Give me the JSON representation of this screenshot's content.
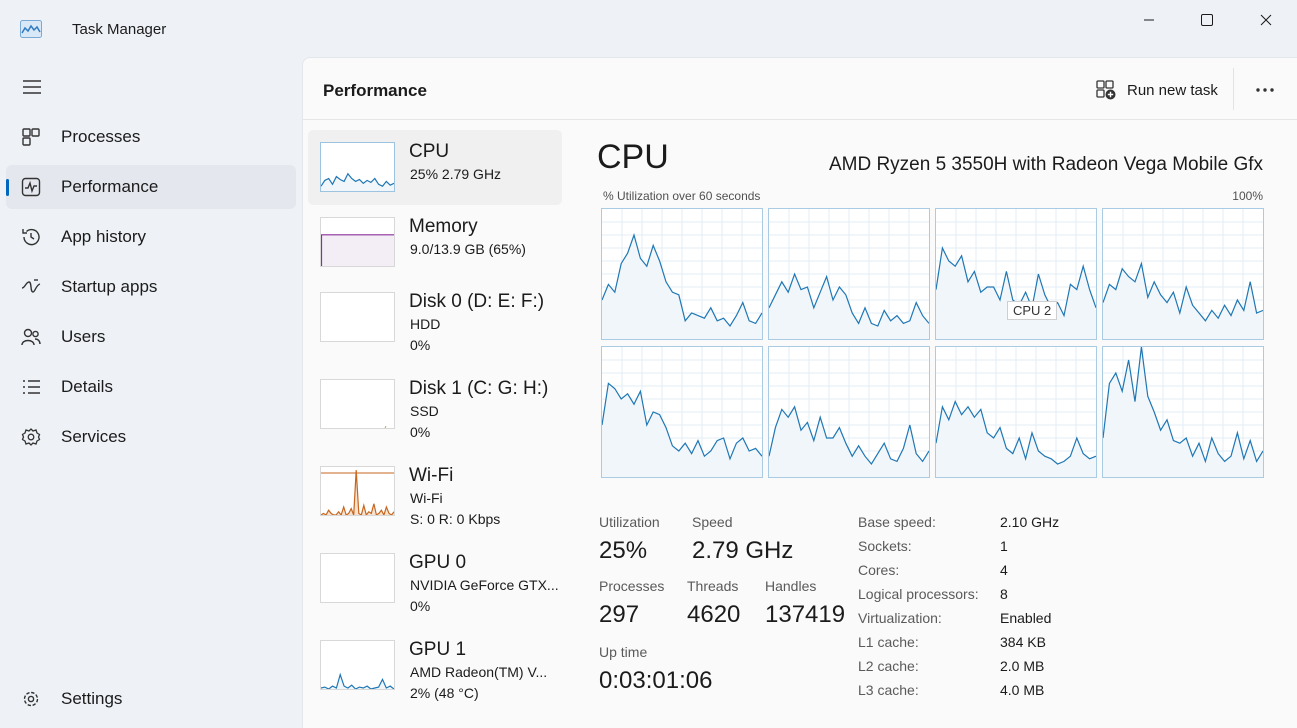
{
  "window": {
    "title": "Task Manager"
  },
  "sidebar": {
    "items": [
      {
        "label": "Processes",
        "icon": "processes-icon"
      },
      {
        "label": "Performance",
        "icon": "performance-icon",
        "active": true
      },
      {
        "label": "App history",
        "icon": "app-history-icon"
      },
      {
        "label": "Startup apps",
        "icon": "startup-apps-icon"
      },
      {
        "label": "Users",
        "icon": "users-icon"
      },
      {
        "label": "Details",
        "icon": "details-icon"
      },
      {
        "label": "Services",
        "icon": "services-icon"
      }
    ],
    "settings_label": "Settings"
  },
  "header": {
    "title": "Performance",
    "run_task_label": "Run new task"
  },
  "resources": [
    {
      "name": "CPU",
      "line1": "25%  2.79 GHz",
      "line2": "",
      "selected": true
    },
    {
      "name": "Memory",
      "line1": "9.0/13.9 GB (65%)",
      "line2": ""
    },
    {
      "name": "Disk 0 (D: E: F:)",
      "line1": "HDD",
      "line2": "0%"
    },
    {
      "name": "Disk 1 (C: G: H:)",
      "line1": "SSD",
      "line2": "0%"
    },
    {
      "name": "Wi-Fi",
      "line1": "Wi-Fi",
      "line2": "S: 0  R: 0 Kbps"
    },
    {
      "name": "GPU 0",
      "line1": "NVIDIA GeForce GTX...",
      "line2": "0%"
    },
    {
      "name": "GPU 1",
      "line1": "AMD Radeon(TM) V...",
      "line2": "2% (48 °C)"
    }
  ],
  "detail": {
    "title": "CPU",
    "model": "AMD Ryzen 5 3550H with Radeon Vega Mobile Gfx",
    "graph_label": "% Utilization over 60 seconds",
    "graph_max": "100%",
    "tooltip": "CPU 2",
    "stats": {
      "utilization_label": "Utilization",
      "utilization": "25%",
      "speed_label": "Speed",
      "speed": "2.79 GHz",
      "processes_label": "Processes",
      "processes": "297",
      "threads_label": "Threads",
      "threads": "4620",
      "handles_label": "Handles",
      "handles": "137419",
      "uptime_label": "Up time",
      "uptime": "0:03:01:06"
    },
    "specs": [
      {
        "key": "Base speed:",
        "value": "2.10 GHz"
      },
      {
        "key": "Sockets:",
        "value": "1"
      },
      {
        "key": "Cores:",
        "value": "4"
      },
      {
        "key": "Logical processors:",
        "value": "8"
      },
      {
        "key": "Virtualization:",
        "value": "Enabled"
      },
      {
        "key": "L1 cache:",
        "value": "384 KB"
      },
      {
        "key": "L2 cache:",
        "value": "2.0 MB"
      },
      {
        "key": "L3 cache:",
        "value": "4.0 MB"
      }
    ]
  },
  "colors": {
    "accent": "#0067c0",
    "cpu_line": "#1f77b4",
    "cpu_fill": "#f1f6fa",
    "memory_line": "#8b2f9c",
    "wifi_line": "#c7661f"
  },
  "chart_data": {
    "type": "area",
    "ylim": [
      0,
      100
    ],
    "series": [
      {
        "name": "CPU 0",
        "values": [
          30,
          42,
          36,
          58,
          66,
          80,
          62,
          56,
          72,
          60,
          44,
          36,
          34,
          14,
          20,
          18,
          16,
          24,
          14,
          16,
          10,
          18,
          28,
          14,
          12,
          20
        ]
      },
      {
        "name": "CPU 1",
        "values": [
          24,
          34,
          44,
          36,
          50,
          38,
          40,
          24,
          36,
          48,
          30,
          40,
          34,
          20,
          12,
          24,
          12,
          10,
          22,
          14,
          18,
          12,
          14,
          28,
          18,
          12
        ]
      },
      {
        "name": "CPU 2",
        "values": [
          38,
          70,
          60,
          56,
          64,
          44,
          52,
          36,
          40,
          40,
          30,
          52,
          30,
          26,
          36,
          24,
          50,
          34,
          24,
          28,
          18,
          42,
          38,
          56,
          38,
          24
        ]
      },
      {
        "name": "CPU 3",
        "values": [
          28,
          42,
          38,
          54,
          48,
          44,
          58,
          32,
          44,
          34,
          28,
          36,
          20,
          40,
          26,
          20,
          14,
          22,
          16,
          26,
          18,
          30,
          22,
          44,
          20,
          22
        ]
      },
      {
        "name": "CPU 4",
        "values": [
          40,
          72,
          68,
          60,
          64,
          56,
          66,
          40,
          50,
          48,
          38,
          24,
          20,
          26,
          18,
          28,
          16,
          20,
          28,
          30,
          14,
          26,
          30,
          20,
          22,
          16
        ]
      },
      {
        "name": "CPU 5",
        "values": [
          16,
          38,
          52,
          46,
          54,
          36,
          42,
          28,
          46,
          30,
          30,
          38,
          26,
          16,
          24,
          16,
          10,
          18,
          26,
          14,
          12,
          22,
          40,
          18,
          12,
          20
        ]
      },
      {
        "name": "CPU 6",
        "values": [
          26,
          54,
          44,
          58,
          48,
          54,
          46,
          52,
          34,
          30,
          38,
          22,
          18,
          30,
          14,
          34,
          20,
          16,
          14,
          10,
          12,
          16,
          30,
          18,
          14,
          16
        ]
      },
      {
        "name": "CPU 7",
        "values": [
          30,
          72,
          80,
          66,
          90,
          58,
          100,
          62,
          50,
          36,
          44,
          28,
          26,
          30,
          16,
          26,
          12,
          30,
          18,
          12,
          16,
          34,
          14,
          28,
          12,
          20
        ]
      }
    ]
  },
  "thumbnails": {
    "cpu": [
      10,
      22,
      26,
      14,
      30,
      24,
      20,
      36,
      26,
      20,
      24,
      16,
      22,
      18,
      26,
      14,
      10,
      20,
      12,
      16
    ],
    "memory_level": 65,
    "disk1_level": 2,
    "wifi": [
      0,
      2,
      0,
      6,
      2,
      0,
      0,
      4,
      0,
      10,
      0,
      2,
      8,
      0,
      56,
      2,
      0,
      12,
      0,
      4,
      2,
      14,
      0,
      2,
      6,
      0,
      10,
      2,
      0,
      4
    ],
    "gpu1": [
      2,
      4,
      0,
      6,
      2,
      30,
      6,
      2,
      8,
      0,
      4,
      2,
      6,
      0,
      2,
      4,
      20,
      2,
      6,
      0
    ]
  }
}
